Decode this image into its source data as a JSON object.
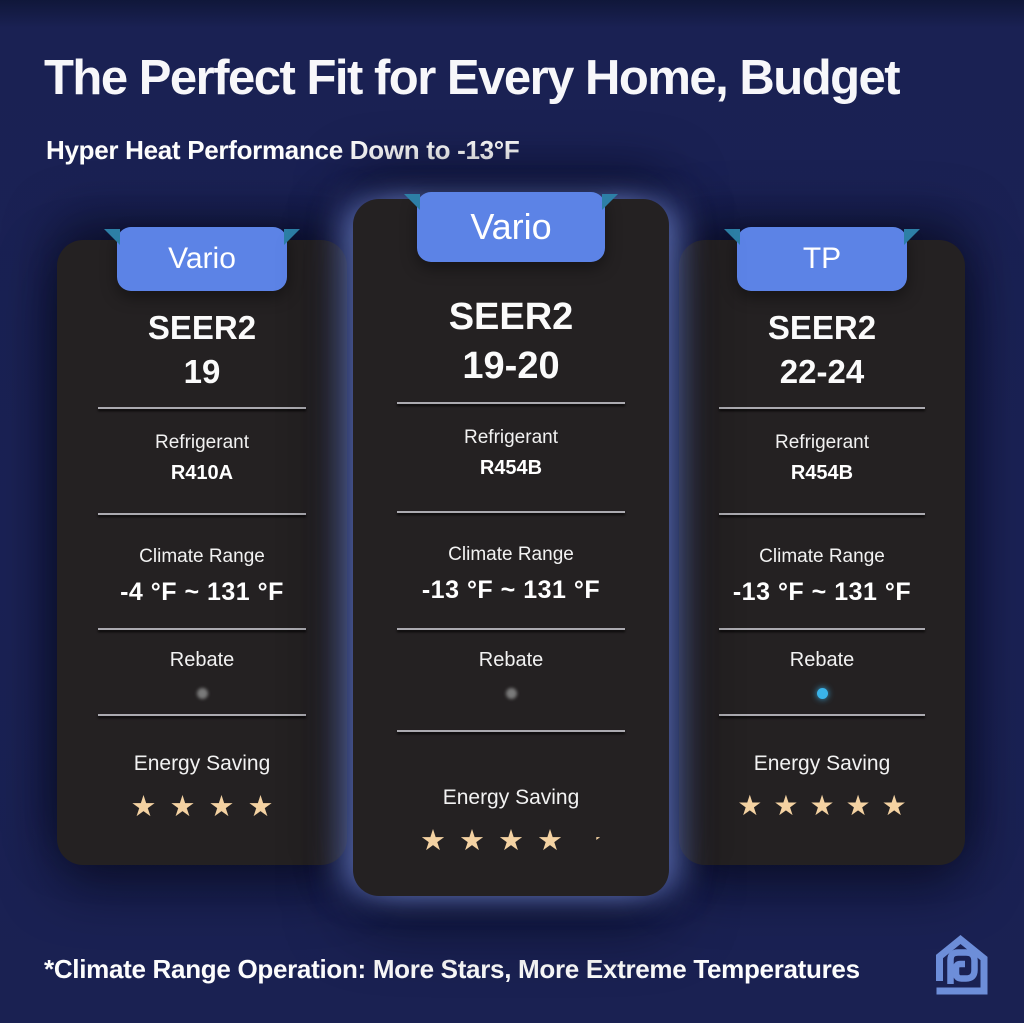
{
  "header": {
    "title": "The Perfect Fit for Every Home, Budget",
    "subtitle": "Hyper Heat Performance Down to -13°F"
  },
  "footer": {
    "note": "*Climate Range Operation: More Stars, More Extreme Temperatures",
    "logo_icon": "house-spiral-logo"
  },
  "colors": {
    "background": "#1A2153",
    "card": "#242122",
    "tab": "#5C83E6",
    "tab_fold": "#2D7FA6",
    "star": "#F4D2A2",
    "rebate_gray": "#7A7A7A",
    "rebate_blue": "#3AB4EA",
    "edge_glow": "#8098EE",
    "logo": "#6D8ED9"
  },
  "cards": [
    {
      "tab": "Vario",
      "seer_label": "SEER2",
      "seer_value": "19",
      "refrigerant": {
        "label": "Refrigerant",
        "value": "R410A"
      },
      "climate": {
        "label": "Climate Range",
        "value": "-4 °F ~ 131 °F"
      },
      "rebate": {
        "label": "Rebate",
        "dot_color": "#7A7A7A",
        "dot_style": "blur"
      },
      "energy": {
        "label": "Energy Saving",
        "stars_full": 4,
        "stars_half": false
      }
    },
    {
      "tab": "Vario",
      "seer_label": "SEER2",
      "seer_value": "19-20",
      "refrigerant": {
        "label": "Refrigerant",
        "value": "R454B"
      },
      "climate": {
        "label": "Climate Range",
        "value": "-13 °F ~ 131 °F"
      },
      "rebate": {
        "label": "Rebate",
        "dot_color": "#7A7A7A",
        "dot_style": "blur"
      },
      "energy": {
        "label": "Energy Saving",
        "stars_full": 4,
        "stars_half": true
      }
    },
    {
      "tab": "TP",
      "seer_label": "SEER2",
      "seer_value": "22-24",
      "refrigerant": {
        "label": "Refrigerant",
        "value": "R454B"
      },
      "climate": {
        "label": "Climate Range",
        "value": "-13 °F ~ 131 °F"
      },
      "rebate": {
        "label": "Rebate",
        "dot_color": "#3AB4EA",
        "dot_style": "glow"
      },
      "energy": {
        "label": "Energy Saving",
        "stars_full": 5,
        "stars_half": false
      }
    }
  ]
}
